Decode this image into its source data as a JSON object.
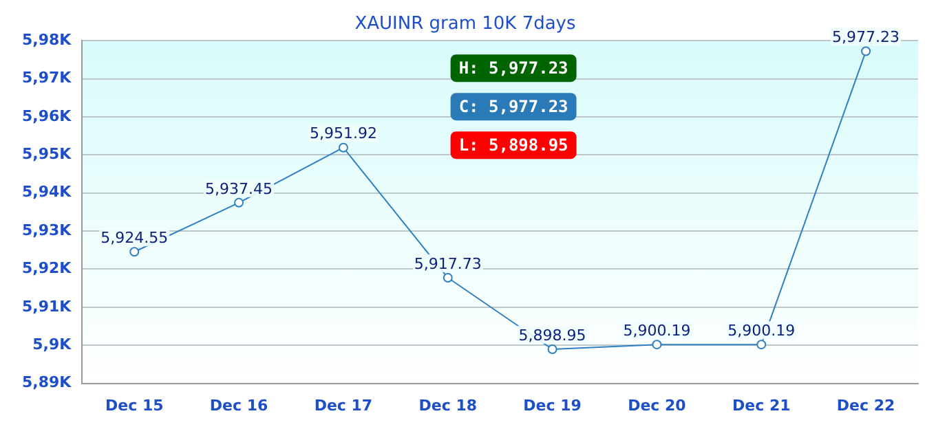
{
  "chart_data": {
    "type": "line",
    "title": "XAUINR gram 10K 7days",
    "categories": [
      "Dec 15",
      "Dec 16",
      "Dec 17",
      "Dec 18",
      "Dec 19",
      "Dec 20",
      "Dec 21",
      "Dec 22"
    ],
    "series": [
      {
        "color": "#2f7fc1",
        "values": [
          5924.55,
          5937.45,
          5951.92,
          5917.73,
          5898.95,
          5900.19,
          5900.19,
          5977.23
        ],
        "value_labels": [
          "5,924.55",
          "5,937.45",
          "5,951.92",
          "5,917.73",
          "5,898.95",
          "5,900.19",
          "5,900.19",
          "5,977.23"
        ]
      }
    ],
    "ylim": [
      5890,
      5980
    ],
    "yticks": [
      {
        "value": 5890,
        "label": "5,89K"
      },
      {
        "value": 5900,
        "label": "5,9K"
      },
      {
        "value": 5910,
        "label": "5,91K"
      },
      {
        "value": 5920,
        "label": "5,92K"
      },
      {
        "value": 5930,
        "label": "5,93K"
      },
      {
        "value": 5940,
        "label": "5,94K"
      },
      {
        "value": 5950,
        "label": "5,95K"
      },
      {
        "value": 5960,
        "label": "5,96K"
      },
      {
        "value": 5970,
        "label": "5,97K"
      },
      {
        "value": 5980,
        "label": "5,98K"
      }
    ],
    "grid": "y",
    "marker": "circle",
    "legend": false,
    "annotations": [
      "H: 5,977.23",
      "C: 5,977.23",
      "L: 5,898.95"
    ]
  }
}
